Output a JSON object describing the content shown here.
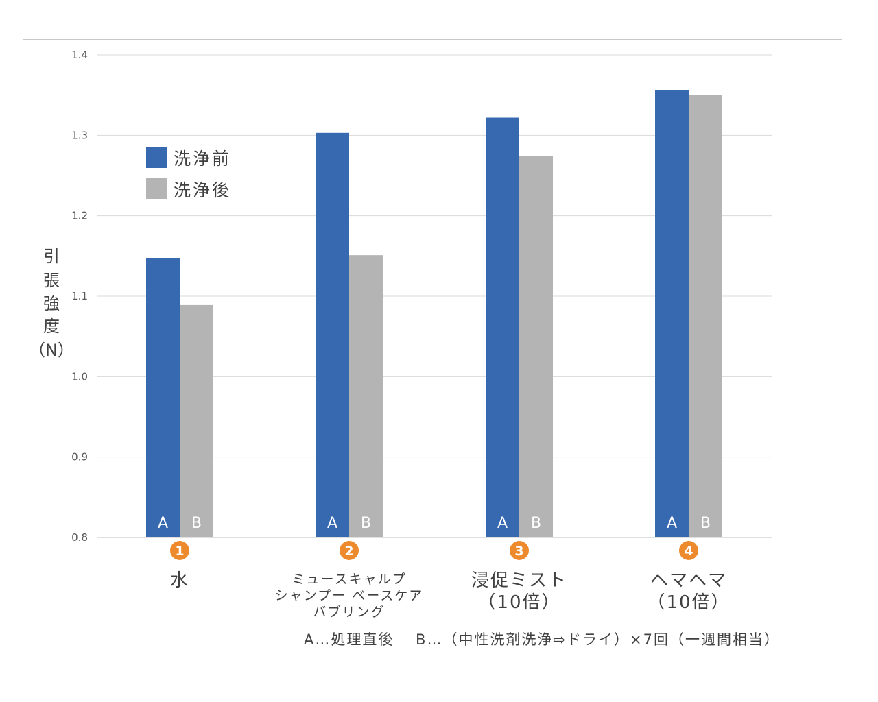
{
  "chart_data": {
    "type": "bar",
    "ylabel": [
      "引",
      "張",
      "強",
      "度",
      "（N）"
    ],
    "ylim": [
      0.8,
      1.4
    ],
    "yticks": [
      "1.4",
      "1.3",
      "1.2",
      "1.1",
      "1.0",
      "0.9",
      "0.8"
    ],
    "grid": true,
    "legend_position": "top-left",
    "categories": [
      {
        "badge": "1",
        "label_lines": [
          "水"
        ],
        "size": "large"
      },
      {
        "badge": "2",
        "label_lines": [
          "ミュースキャルプ",
          "シャンプー ベースケア",
          "バブリング"
        ],
        "size": "small"
      },
      {
        "badge": "3",
        "label_lines": [
          "浸促ミスト",
          "（10倍）"
        ],
        "size": "large"
      },
      {
        "badge": "4",
        "label_lines": [
          "ヘマヘマ",
          "（10倍）"
        ],
        "size": "large"
      }
    ],
    "series": [
      {
        "name": "洗浄前",
        "bar_label": "A",
        "color": "#3769b1",
        "values": [
          1.147,
          1.303,
          1.322,
          1.356
        ]
      },
      {
        "name": "洗浄後",
        "bar_label": "B",
        "color": "#b4b4b5",
        "values": [
          1.089,
          1.151,
          1.274,
          1.35
        ]
      }
    ],
    "badge_color": "#ee8a2e",
    "note": "A…処理直後　 B…（中性洗剤洗浄⇨ドライ）×7回（一週間相当）"
  }
}
